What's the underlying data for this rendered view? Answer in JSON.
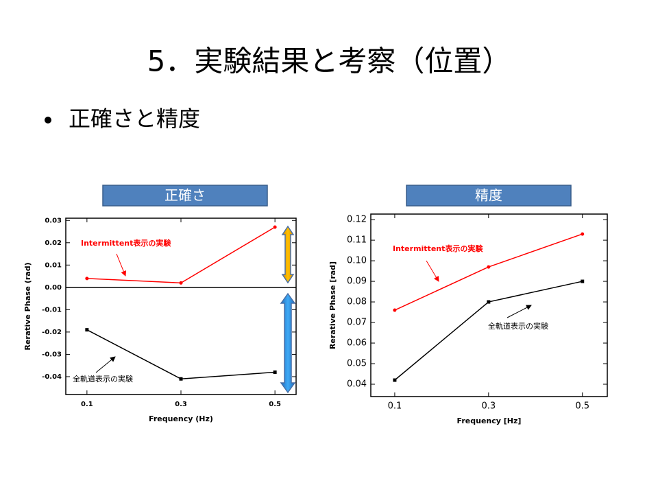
{
  "title": "5．実験結果と考察（位置）",
  "bullet": "正確さと精度",
  "chart_data": [
    {
      "type": "line",
      "title": "正確さ",
      "x_label": "Frequency (Hz)",
      "y_label": "Rerative Phase (rad)",
      "x": [
        0.1,
        0.3,
        0.5
      ],
      "xlim": [
        0.055,
        0.545
      ],
      "xticks": [
        0.1,
        0.3,
        0.5
      ],
      "ylim": [
        -0.048,
        0.031
      ],
      "yticks": [
        -0.04,
        -0.03,
        -0.02,
        -0.01,
        {
          "value": 0,
          "label": "0.00"
        },
        0.01,
        0.02,
        0.03
      ],
      "series": [
        {
          "name": "Intermittent表示の実験",
          "color": "#ff0000",
          "values": [
            0.004,
            0.002,
            0.027
          ]
        },
        {
          "name": "全軌道表示の実験",
          "color": "#000000",
          "values": [
            -0.019,
            -0.041,
            -0.038
          ]
        }
      ]
    },
    {
      "type": "line",
      "title": "精度",
      "x_label": "Frequency [Hz]",
      "y_label": "Rerative Phase [rad]",
      "x": [
        0.1,
        0.3,
        0.5
      ],
      "xlim": [
        0.049,
        0.553
      ],
      "xticks": [
        0.1,
        0.3,
        0.5
      ],
      "ylim": [
        0.034,
        0.1227
      ],
      "yticks": [
        0.04,
        0.05,
        0.06,
        0.07,
        0.08,
        0.09,
        {
          "value": 0.1,
          "label": "0.10"
        },
        0.11,
        0.12
      ],
      "series": [
        {
          "name": "Intermittent表示の実験",
          "color": "#ff0000",
          "values": [
            0.076,
            0.097,
            0.113
          ]
        },
        {
          "name": "全軌道表示の実験",
          "color": "#000000",
          "values": [
            0.042,
            0.08,
            0.09
          ]
        }
      ]
    }
  ]
}
